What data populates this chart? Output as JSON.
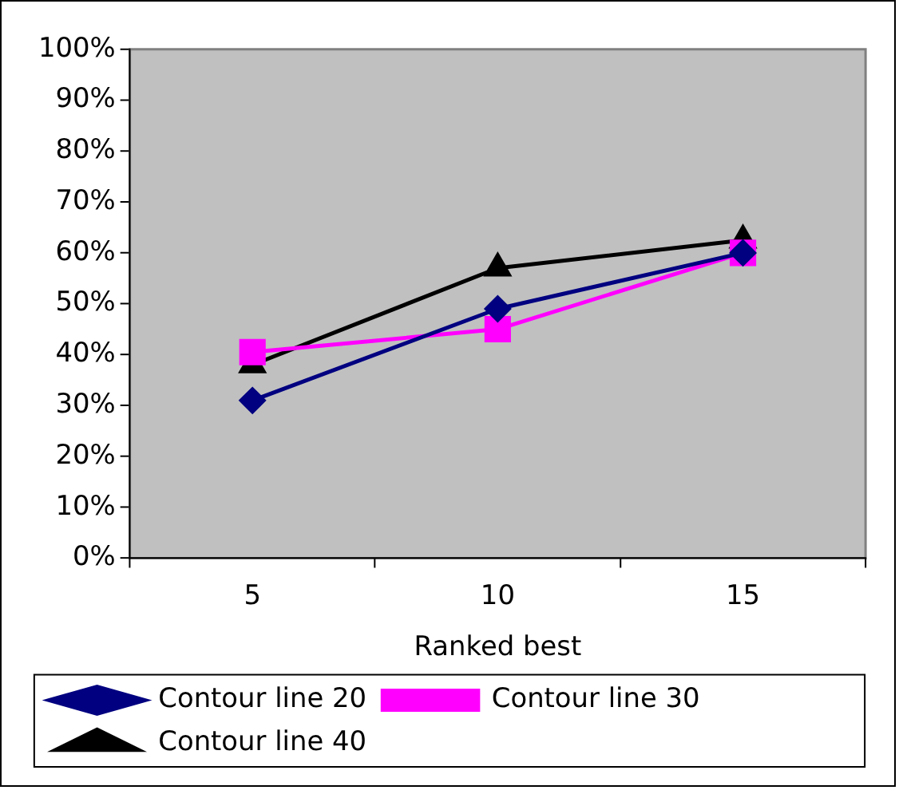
{
  "chart_data": {
    "type": "line",
    "xlabel": "Ranked best",
    "categories": [
      "5",
      "10",
      "15"
    ],
    "series": [
      {
        "name": "Contour line 20",
        "color": "#000080",
        "marker": "diamond",
        "values": [
          31,
          49,
          60
        ]
      },
      {
        "name": "Contour line 30",
        "color": "#ff00ff",
        "marker": "square",
        "values": [
          40.5,
          45,
          60
        ]
      },
      {
        "name": "Contour line 40",
        "color": "#000000",
        "marker": "triangle",
        "values": [
          38,
          57,
          62.5
        ]
      }
    ],
    "ylim": [
      0,
      100
    ],
    "yticks": [
      {
        "value": 0,
        "label": "0%"
      },
      {
        "value": 10,
        "label": "10%"
      },
      {
        "value": 20,
        "label": "20%"
      },
      {
        "value": 30,
        "label": "30%"
      },
      {
        "value": 40,
        "label": "40%"
      },
      {
        "value": 50,
        "label": "50%"
      },
      {
        "value": 60,
        "label": "60%"
      },
      {
        "value": 70,
        "label": "70%"
      },
      {
        "value": 80,
        "label": "80%"
      },
      {
        "value": 90,
        "label": "90%"
      },
      {
        "value": 100,
        "label": "100%"
      }
    ],
    "grid": false,
    "legend": "bottom",
    "line_style": "solid"
  }
}
